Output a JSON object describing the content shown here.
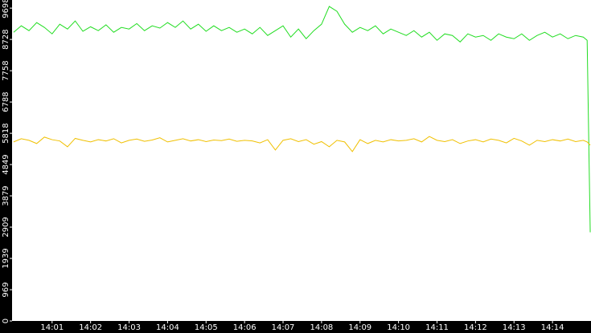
{
  "chart_data": {
    "type": "line",
    "x": [
      0,
      0.2,
      0.4,
      0.6,
      0.8,
      1.0,
      1.2,
      1.4,
      1.6,
      1.8,
      2.0,
      2.2,
      2.4,
      2.6,
      2.8,
      3.0,
      3.2,
      3.4,
      3.6,
      3.8,
      4.0,
      4.2,
      4.4,
      4.6,
      4.8,
      5.0,
      5.2,
      5.4,
      5.6,
      5.8,
      6.0,
      6.2,
      6.4,
      6.6,
      6.8,
      7.0,
      7.2,
      7.4,
      7.6,
      7.8,
      8.0,
      8.2,
      8.4,
      8.6,
      8.8,
      9.0,
      9.2,
      9.4,
      9.6,
      9.8,
      10.0,
      10.2,
      10.4,
      10.6,
      10.8,
      11.0,
      11.2,
      11.4,
      11.6,
      11.8,
      12.0,
      12.2,
      12.4,
      12.6,
      12.8,
      13.0,
      13.2,
      13.4,
      13.6,
      13.8,
      14.0,
      14.2,
      14.4,
      14.6,
      14.8,
      14.9,
      14.98
    ],
    "series": [
      {
        "color": "#22dd22",
        "values": [
          8950,
          9150,
          9000,
          9250,
          9100,
          8900,
          9200,
          9050,
          9300,
          8980,
          9120,
          9000,
          9180,
          8950,
          9100,
          9050,
          9220,
          9000,
          9150,
          9080,
          9250,
          9100,
          9300,
          9050,
          9200,
          8980,
          9150,
          9000,
          9100,
          8950,
          9050,
          8900,
          9100,
          8850,
          9000,
          9150,
          8800,
          9050,
          8750,
          9000,
          9200,
          9750,
          9600,
          9200,
          8950,
          9100,
          9000,
          9150,
          8900,
          9050,
          8950,
          8850,
          9000,
          8800,
          8950,
          8700,
          8900,
          8850,
          8650,
          8900,
          8800,
          8850,
          8700,
          8900,
          8800,
          8750,
          8900,
          8700,
          8850,
          8950,
          8800,
          8900,
          8750,
          8850,
          8800,
          8700,
          2750
        ]
      },
      {
        "color": "#f0c000",
        "values": [
          5550,
          5650,
          5600,
          5500,
          5700,
          5620,
          5580,
          5400,
          5660,
          5600,
          5550,
          5620,
          5580,
          5650,
          5520,
          5600,
          5640,
          5570,
          5610,
          5680,
          5550,
          5600,
          5650,
          5580,
          5620,
          5560,
          5610,
          5590,
          5640,
          5570,
          5600,
          5580,
          5520,
          5620,
          5300,
          5600,
          5650,
          5560,
          5620,
          5480,
          5560,
          5400,
          5600,
          5550,
          5250,
          5620,
          5500,
          5600,
          5550,
          5620,
          5580,
          5600,
          5650,
          5550,
          5720,
          5600,
          5560,
          5620,
          5500,
          5580,
          5620,
          5550,
          5640,
          5600,
          5520,
          5660,
          5580,
          5450,
          5600,
          5560,
          5620,
          5580,
          5640,
          5560,
          5600,
          5550,
          5450
        ]
      }
    ],
    "xlim": [
      -0.04,
      15
    ],
    "xticks": [
      {
        "value": 1,
        "label": "14:01"
      },
      {
        "value": 2,
        "label": "14:02"
      },
      {
        "value": 3,
        "label": "14:03"
      },
      {
        "value": 4,
        "label": "14:04"
      },
      {
        "value": 5,
        "label": "14:05"
      },
      {
        "value": 6,
        "label": "14:06"
      },
      {
        "value": 7,
        "label": "14:07"
      },
      {
        "value": 8,
        "label": "14:08"
      },
      {
        "value": 9,
        "label": "14:09"
      },
      {
        "value": 10,
        "label": "14:10"
      },
      {
        "value": 11,
        "label": "14:11"
      },
      {
        "value": 12,
        "label": "14:12"
      },
      {
        "value": 13,
        "label": "14:13"
      },
      {
        "value": 14,
        "label": "14:14"
      }
    ],
    "ylim": [
      0,
      9950
    ],
    "yticks": [
      0,
      969,
      1939,
      2909,
      3879,
      4849,
      5818,
      6788,
      7758,
      8728,
      9698
    ]
  }
}
